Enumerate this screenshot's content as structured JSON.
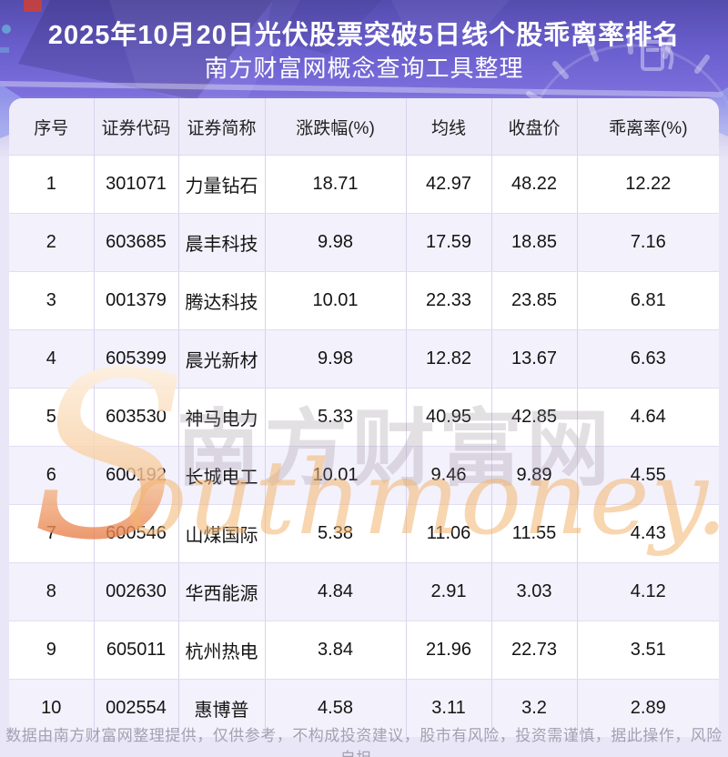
{
  "header": {
    "title_line1": "2025年10月20日光伏股票突破5日线个股乖离率排名",
    "title_line2": "南方财富网概念查询工具整理"
  },
  "chart_data": {
    "type": "table",
    "title": "2025年10月20日光伏股票突破5日线个股乖离率排名",
    "columns": [
      "序号",
      "证券代码",
      "证券简称",
      "涨跌幅(%)",
      "均线",
      "收盘价",
      "乖离率(%)"
    ],
    "rows": [
      [
        "1",
        "301071",
        "力量钻石",
        "18.71",
        "42.97",
        "48.22",
        "12.22"
      ],
      [
        "2",
        "603685",
        "晨丰科技",
        "9.98",
        "17.59",
        "18.85",
        "7.16"
      ],
      [
        "3",
        "001379",
        "腾达科技",
        "10.01",
        "22.33",
        "23.85",
        "6.81"
      ],
      [
        "4",
        "605399",
        "晨光新材",
        "9.98",
        "12.82",
        "13.67",
        "6.63"
      ],
      [
        "5",
        "603530",
        "神马电力",
        "5.33",
        "40.95",
        "42.85",
        "4.64"
      ],
      [
        "6",
        "600192",
        "长城电工",
        "10.01",
        "9.46",
        "9.89",
        "4.55"
      ],
      [
        "7",
        "600546",
        "山煤国际",
        "5.38",
        "11.06",
        "11.55",
        "4.43"
      ],
      [
        "8",
        "002630",
        "华西能源",
        "4.84",
        "2.91",
        "3.03",
        "4.12"
      ],
      [
        "9",
        "605011",
        "杭州热电",
        "3.84",
        "21.96",
        "22.73",
        "3.51"
      ],
      [
        "10",
        "002554",
        "惠博普",
        "4.58",
        "3.11",
        "3.2",
        "2.89"
      ]
    ]
  },
  "watermark": {
    "initial": "S",
    "brand_cn": "南方财富网",
    "brand_en": "outhmoney.com"
  },
  "footer": {
    "disclaimer": "数据由南方财富网整理提供，仅供参考，不构成投资建议，股市有风险，投资需谨慎，据此操作，风险自担。"
  },
  "colors": {
    "hero_purple_top": "#554cae",
    "hero_purple_bottom": "#7d70dd",
    "page_background": "#e9e6f7",
    "table_header_bg": "#efecf9",
    "row_alt_bg": "#f3f1fb",
    "cell_border": "#d8d3ec",
    "body_text": "#141414",
    "title_text": "#ffffff",
    "footer_text": "#a5a0b3",
    "watermark_orange": "#f3b570",
    "watermark_gray": "#918798",
    "accent_red": "#c9403a"
  }
}
